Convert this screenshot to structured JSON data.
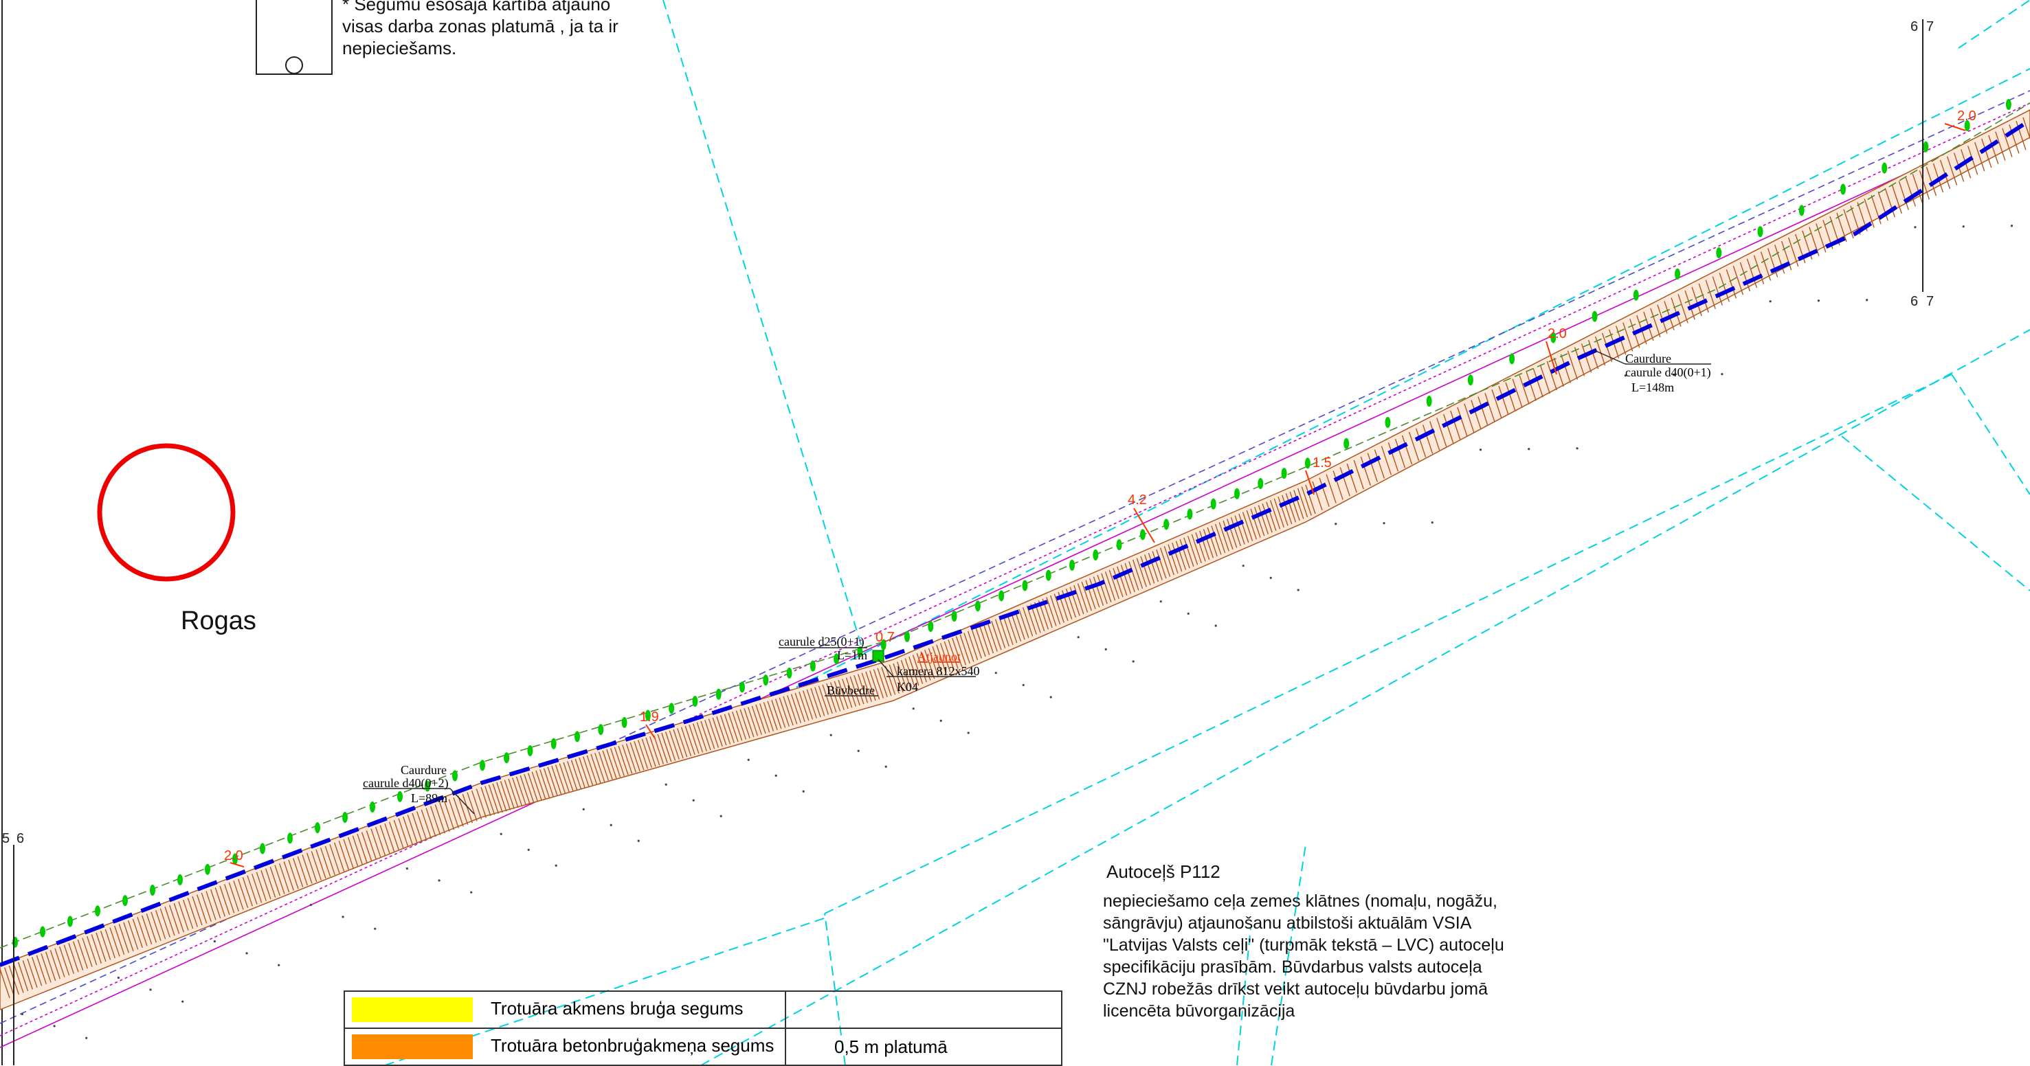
{
  "note": {
    "lines": [
      "* Segumu esošajā kārtībā atjauno",
      "visas darba zonas platumā , ja ta ir",
      "nepieciešams."
    ]
  },
  "town_name": "Rogas",
  "road": {
    "title": "Autoceļš P112",
    "lines": [
      "nepieciešamo ceļa zemes klātnes (nomaļu, nogāžu,",
      "sāngrāvju) atjaunošanu atbilstoši aktuālām VSIA",
      "\"Latvijas Valsts ceļi\" (turpmāk tekstā – LVC) autoceļu",
      "specifikāciju prasībām. Būvdarbus valsts autoceļa",
      "CZNJ robežās drīkst veikt autoceļu būvdarbu jomā",
      "licencēta būvorganizācija"
    ]
  },
  "sheets": {
    "left_a": "5",
    "left_b": "6",
    "right_a": "6",
    "right_b": "7"
  },
  "pipes": [
    {
      "label": "Caurdure",
      "spec": "caurule d40(0+2)",
      "length": "L=89m"
    },
    {
      "label": "caurule d25(0+1)",
      "spec": "L=1m",
      "length": ""
    },
    {
      "label": "Caurdure",
      "spec": "caurule d40(0+1)",
      "length": "L=148m"
    }
  ],
  "well": {
    "name": "Būvbedre",
    "camera": "kamera 812x540",
    "code": "K04",
    "restore": "Atjaunot"
  },
  "depth_marks": [
    "2.0",
    "1.9",
    "0.7",
    "4.2",
    "1.5",
    "2.0",
    "2.0"
  ],
  "legend": [
    {
      "label": "Trotuāra akmens bruģa segums",
      "note": "",
      "color": "#ffff00"
    },
    {
      "label": "Trotuāra betonbruģakmeņa segums",
      "note": "0,5 m platumā",
      "color": "#ff8c00"
    }
  ],
  "colors": {
    "cable_route": "#0000dd",
    "hatch": "#b2551d",
    "dimension": "#ff3300",
    "boundary": "#00d3e0",
    "edge": "#cc00cc",
    "tree": "#00cc00"
  },
  "icons": [
    "location-circle-icon",
    "tree-icon",
    "well-icon"
  ]
}
